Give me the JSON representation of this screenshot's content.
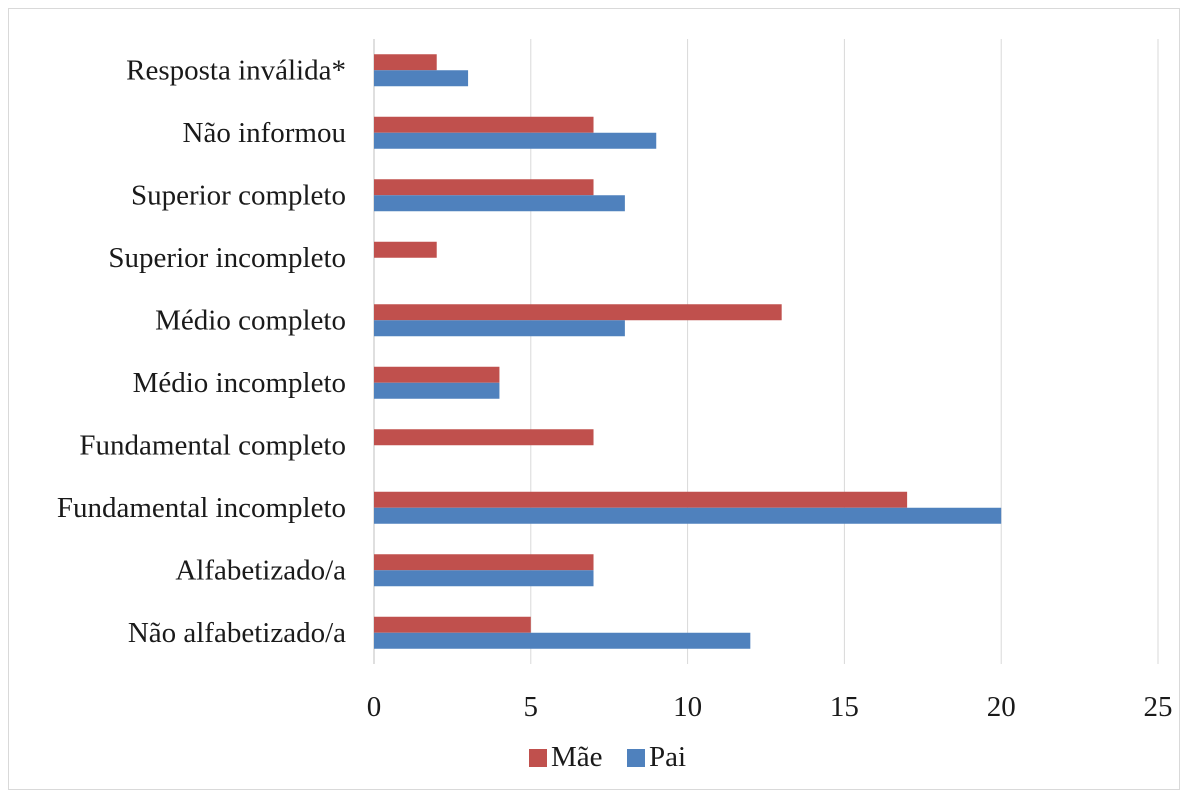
{
  "chart_data": {
    "type": "bar",
    "orientation": "horizontal",
    "categories": [
      "Não alfabetizado/a",
      "Alfabetizado/a",
      "Fundamental incompleto",
      "Fundamental completo",
      "Médio incompleto",
      "Médio completo",
      "Superior incompleto",
      "Superior completo",
      "Não informou",
      "Resposta inválida*"
    ],
    "series": [
      {
        "name": "Mãe",
        "color": "#c0504d",
        "values": [
          5,
          7,
          17,
          7,
          4,
          13,
          2,
          7,
          7,
          2
        ]
      },
      {
        "name": "Pai",
        "color": "#4f81bd",
        "values": [
          12,
          7,
          20,
          0,
          4,
          8,
          0,
          8,
          9,
          3
        ]
      }
    ],
    "xlim": [
      0,
      25
    ],
    "xticks": [
      0,
      5,
      10,
      15,
      20,
      25
    ],
    "grid": "vertical",
    "legend": "bottom-center"
  }
}
